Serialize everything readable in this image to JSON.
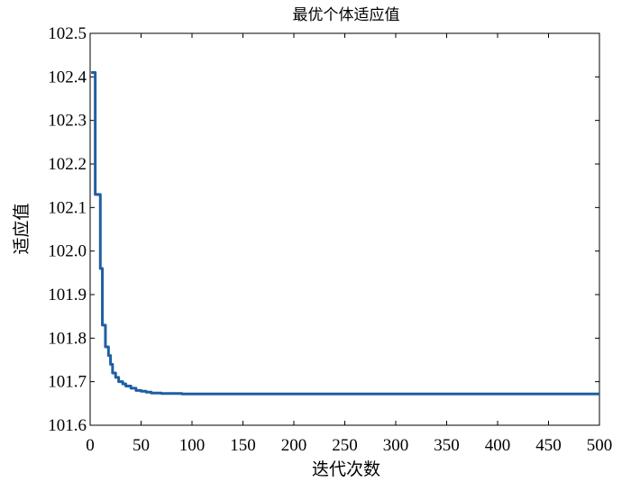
{
  "chart_data": {
    "type": "line",
    "title": "最优个体适应值",
    "xlabel": "迭代次数",
    "ylabel": "适应值",
    "xlim": [
      0,
      500
    ],
    "ylim": [
      101.6,
      102.5
    ],
    "xticks": [
      0,
      50,
      100,
      150,
      200,
      250,
      300,
      350,
      400,
      450,
      500
    ],
    "yticks": [
      101.6,
      101.7,
      101.8,
      101.9,
      102.0,
      102.1,
      102.2,
      102.3,
      102.4,
      102.5
    ],
    "xtick_labels": [
      "0",
      "50",
      "100",
      "150",
      "200",
      "250",
      "300",
      "350",
      "400",
      "450",
      "500"
    ],
    "ytick_labels": [
      "101.6",
      "101.7",
      "101.8",
      "101.9",
      "102.0",
      "102.1",
      "102.2",
      "102.3",
      "102.4",
      "102.5"
    ],
    "grid": false,
    "line_color": "#1f5fa3",
    "series": [
      {
        "x": [
          1,
          3,
          5,
          8,
          10,
          12,
          15,
          18,
          20,
          22,
          25,
          28,
          30,
          32,
          35,
          40,
          45,
          50,
          55,
          60,
          70,
          80,
          90,
          100,
          150,
          200,
          300,
          400,
          500
        ],
        "y": [
          102.41,
          102.41,
          102.13,
          102.13,
          101.96,
          101.83,
          101.78,
          101.76,
          101.74,
          101.72,
          101.71,
          101.7,
          101.7,
          101.695,
          101.69,
          101.685,
          101.68,
          101.678,
          101.676,
          101.674,
          101.673,
          101.673,
          101.672,
          101.672,
          101.672,
          101.672,
          101.672,
          101.672,
          101.672
        ]
      }
    ]
  }
}
